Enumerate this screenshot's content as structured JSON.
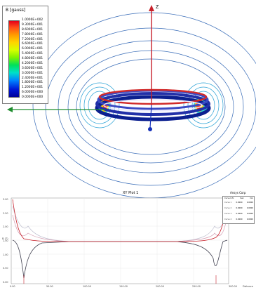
{
  "legend": {
    "title": "B [gauss]",
    "values": [
      "1.0000E+002",
      "9.3000E+001",
      "8.6000E+001",
      "7.8000E+001",
      "7.2000E+001",
      "6.6000E+001",
      "6.0000E+001",
      "5.4000E+001",
      "4.8000E+001",
      "4.2000E+001",
      "3.6000E+001",
      "3.0000E+001",
      "2.4000E+001",
      "1.8000E+001",
      "1.2000E+001",
      "6.0000E+000",
      "0.0000E+000"
    ]
  },
  "axes": {
    "z_label": "Z"
  },
  "plot": {
    "title": "XY Plot 1",
    "top_right": "Ansys Corp",
    "legend_header": [
      "Curve Info",
      "max",
      "min"
    ],
    "legend_rows": [
      [
        "Curve 1",
        "0.0000",
        "0.0000"
      ],
      [
        "Curve 2",
        "0.0000",
        "0.0000"
      ],
      [
        "Curve 3",
        "0.0000",
        "0.0000"
      ],
      [
        "Curve 4",
        "0.0000",
        "0.0000"
      ]
    ],
    "y_ticks": [
      "0.00",
      "0.50",
      "1.00",
      "1.50",
      "2.00",
      "2.50",
      "3.00"
    ],
    "x_ticks": [
      "0.00",
      "50.00",
      "100.00",
      "150.00",
      "200.00",
      "250.00",
      "300.00"
    ],
    "x_end": "Distance",
    "y_label": "B (T)"
  }
}
